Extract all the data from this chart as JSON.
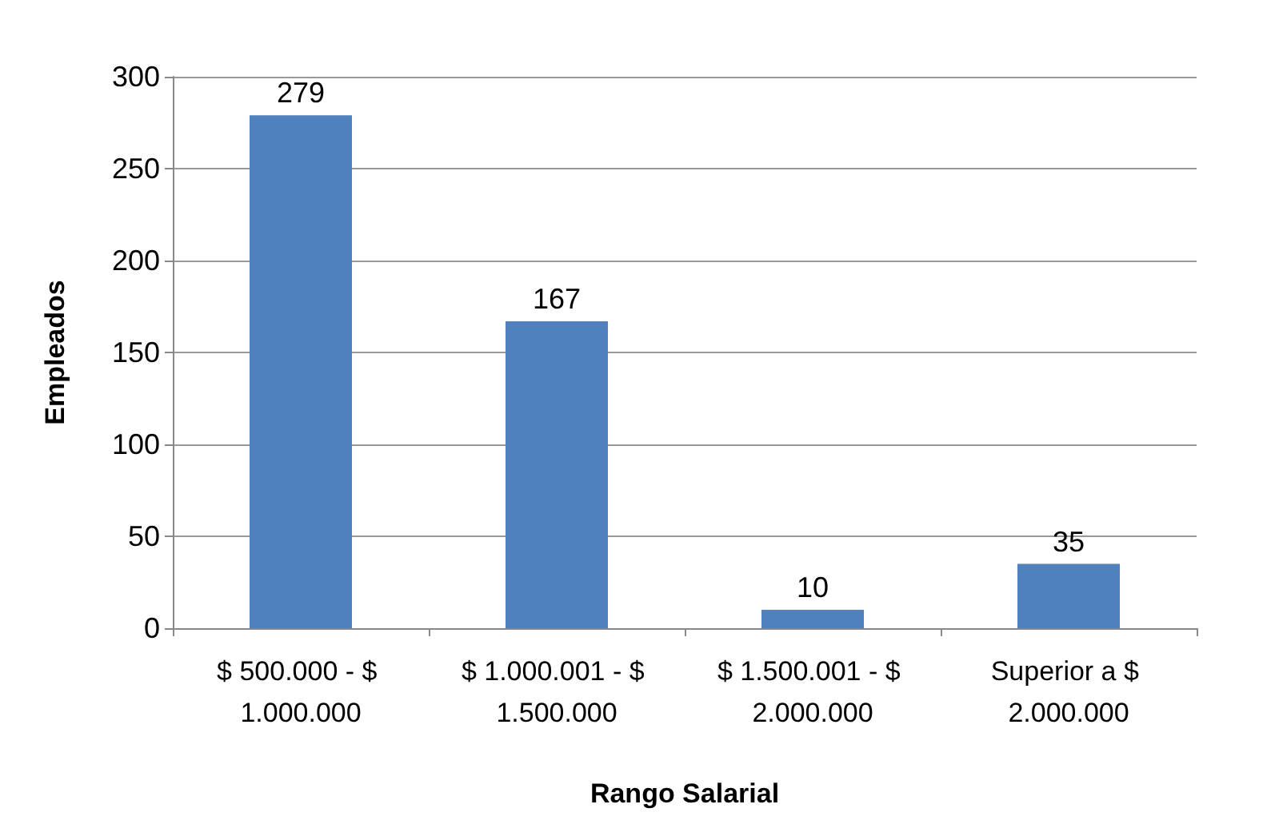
{
  "chart_data": {
    "type": "bar",
    "xlabel": "Rango Salarial",
    "ylabel": "Empleados",
    "categories": [
      "$ 500.000 - $ 1.000.000",
      "$ 1.000.001 - $ 1.500.000",
      "$ 1.500.001 - $ 2.000.000",
      "Superior a $ 2.000.000"
    ],
    "values": [
      279,
      167,
      10,
      35
    ],
    "color": "#4f81bd",
    "ylim": [
      0,
      300
    ],
    "yticks": [
      0,
      50,
      100,
      150,
      200,
      250,
      300
    ],
    "grid": "y",
    "data_labels": true
  }
}
